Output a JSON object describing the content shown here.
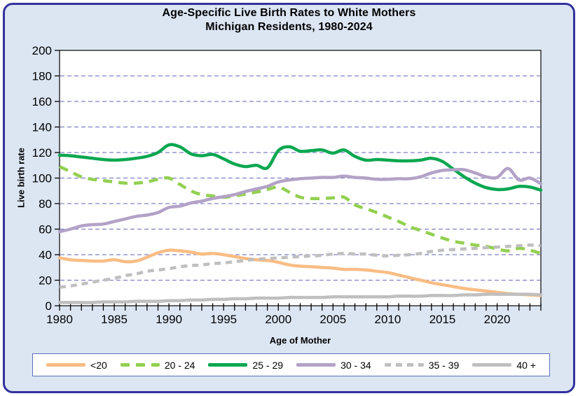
{
  "title": {
    "line1": "Age-Specific Live Birth Rates to White Mothers",
    "line2": "Michigan Residents, 1980-2024"
  },
  "colors": {
    "frame_bg": "#dce6f3",
    "frame_border": "#32329E",
    "plot_bg": "#ffffff",
    "axis": "#000000",
    "gridline": "#7F7FC8",
    "legend_border": "#5F6FBE"
  },
  "chart_data": {
    "type": "line",
    "title": "Age-Specific Live Birth Rates to White Mothers — Michigan Residents, 1980-2024",
    "xlabel": "Age of Mother",
    "ylabel": "Live birth rate",
    "ylim": [
      0,
      200
    ],
    "ytick_step": 20,
    "grid": "horizontal-dashed",
    "legend_position": "bottom",
    "xticks": [
      1980,
      1985,
      1990,
      1995,
      2000,
      2005,
      2010,
      2015,
      2020
    ],
    "x": [
      1980,
      1981,
      1982,
      1983,
      1984,
      1985,
      1986,
      1987,
      1988,
      1989,
      1990,
      1991,
      1992,
      1993,
      1994,
      1995,
      1996,
      1997,
      1998,
      1999,
      2000,
      2001,
      2002,
      2003,
      2004,
      2005,
      2006,
      2007,
      2008,
      2009,
      2010,
      2011,
      2012,
      2013,
      2014,
      2015,
      2016,
      2017,
      2018,
      2019,
      2020,
      2021,
      2022,
      2023,
      2024
    ],
    "series": [
      {
        "name": "<20",
        "color": "#F9BD84",
        "dash": null,
        "values": [
          37.5,
          36,
          35.5,
          35,
          35,
          36,
          34.5,
          35,
          38,
          41.5,
          43.5,
          43,
          42,
          40.5,
          41,
          40,
          38.5,
          37,
          36,
          35.5,
          34,
          32,
          31,
          30.5,
          30,
          29.5,
          28.5,
          28.5,
          28,
          27,
          26,
          24,
          22,
          20,
          18,
          16.5,
          15,
          13.5,
          12.5,
          11.5,
          10.5,
          9.5,
          9,
          8.5,
          8
        ]
      },
      {
        "name": "20 - 24",
        "color": "#92D050",
        "dash": [
          13,
          9
        ],
        "values": [
          109,
          105,
          101,
          99,
          98,
          97,
          96,
          96,
          97,
          99,
          100,
          95,
          90,
          87,
          86,
          85,
          86,
          87.5,
          89,
          91,
          93,
          89,
          85,
          84,
          84,
          84.5,
          85,
          79,
          76,
          73,
          69.5,
          66,
          62,
          59,
          56,
          53,
          50.5,
          49,
          47.5,
          46.5,
          44.5,
          43,
          45,
          43.5,
          41
        ]
      },
      {
        "name": "25 - 29",
        "color": "#0CA750",
        "dash": null,
        "values": [
          118,
          117.5,
          116.5,
          115.5,
          114.5,
          114,
          114.5,
          115.5,
          117,
          120,
          126,
          124.5,
          119,
          117.5,
          118.5,
          115,
          111,
          109,
          110,
          108,
          121.5,
          124.5,
          121,
          121.5,
          122,
          119.5,
          122,
          117,
          114,
          114.5,
          114,
          113.5,
          113.5,
          114,
          115.5,
          113,
          107,
          101,
          96,
          92.5,
          91,
          91.5,
          93.5,
          93,
          90.5
        ]
      },
      {
        "name": "30 - 34",
        "color": "#B3A2C7",
        "dash": null,
        "values": [
          58,
          60,
          62.5,
          63.5,
          64,
          66,
          68,
          70,
          71,
          73,
          77,
          78,
          80.5,
          82,
          84,
          85.5,
          87,
          89.5,
          91.5,
          93.5,
          97,
          98.5,
          99.5,
          100,
          100.5,
          100.5,
          101.5,
          100.5,
          100,
          99,
          99,
          99.5,
          99.5,
          101,
          104,
          106,
          106.5,
          106.5,
          104,
          101,
          100.5,
          107.5,
          98.5,
          100,
          95.5
        ]
      },
      {
        "name": "35 - 39",
        "color": "#BFBFBF",
        "dash": [
          9,
          7
        ],
        "values": [
          14.5,
          15.5,
          17,
          18.5,
          20,
          21.5,
          23.5,
          25,
          27,
          28,
          29,
          30.5,
          31.5,
          32,
          33,
          33.5,
          34.5,
          35.5,
          36.5,
          37,
          37.5,
          38,
          38.5,
          39,
          39.5,
          40.5,
          41,
          40.5,
          40.5,
          39.5,
          39,
          39.5,
          40,
          41,
          42.5,
          43.5,
          44,
          44.5,
          45,
          45.5,
          46,
          46.5,
          47,
          47.5,
          47
        ]
      },
      {
        "name": "40 +",
        "color": "#BFBFBF",
        "dash": null,
        "values": [
          2.5,
          2.5,
          2.5,
          2.5,
          3,
          3,
          3,
          3.5,
          3.5,
          3.5,
          4,
          4,
          4.5,
          4.5,
          5,
          5,
          5.5,
          5.5,
          6,
          6,
          6,
          6.5,
          6.5,
          6.5,
          6.5,
          7,
          7,
          7,
          7,
          7,
          7,
          7.5,
          7.5,
          7.5,
          8,
          8,
          8,
          8.5,
          8.5,
          9,
          9,
          9,
          9,
          9,
          8.5
        ]
      }
    ]
  }
}
